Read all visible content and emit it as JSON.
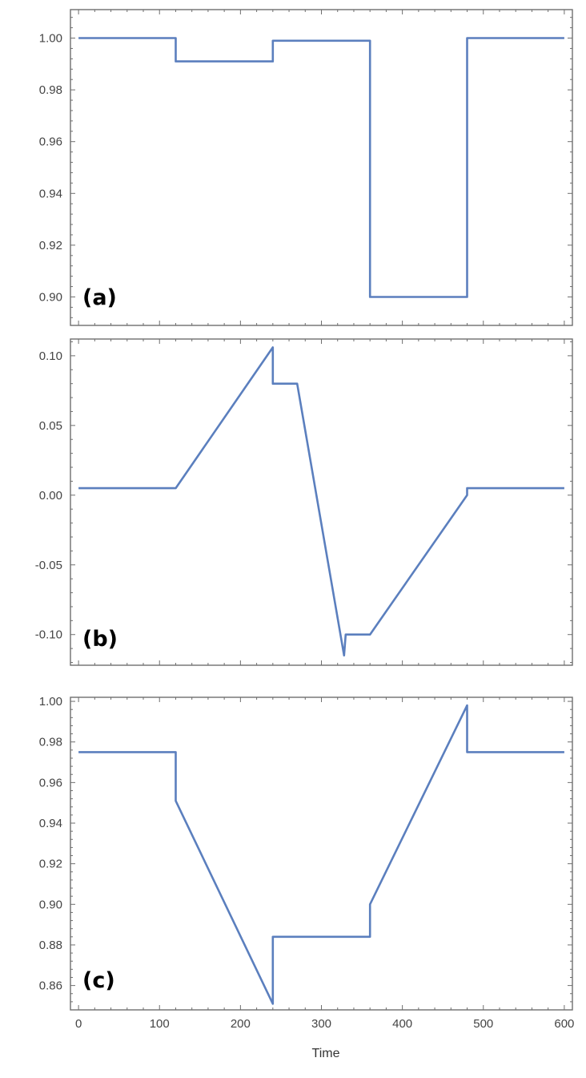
{
  "figure": {
    "xlabel": "Time",
    "line_color": "#5b7fbe"
  },
  "chart_data": [
    {
      "type": "line",
      "panel_label": "(a)",
      "xlim": [
        -10,
        610
      ],
      "ylim": [
        0.889,
        1.011
      ],
      "x_ticks": [
        0,
        100,
        200,
        300,
        400,
        500,
        600
      ],
      "x_tick_labels_visible": false,
      "y_ticks": [
        0.9,
        0.92,
        0.94,
        0.96,
        0.98,
        1.0
      ],
      "y_tick_labels": [
        "0.90",
        "0.92",
        "0.94",
        "0.96",
        "0.98",
        "1.00"
      ],
      "grid": false,
      "series": [
        {
          "x": [
            0,
            120,
            120,
            240,
            240,
            360,
            360,
            480,
            480,
            600
          ],
          "y": [
            1.0,
            1.0,
            0.991,
            0.991,
            0.999,
            0.999,
            0.9,
            0.9,
            1.0,
            1.0
          ]
        }
      ]
    },
    {
      "type": "line",
      "panel_label": "(b)",
      "xlim": [
        -10,
        610
      ],
      "ylim": [
        -0.122,
        0.112
      ],
      "x_ticks": [
        0,
        100,
        200,
        300,
        400,
        500,
        600
      ],
      "x_tick_labels_visible": false,
      "y_ticks": [
        -0.1,
        -0.05,
        0.0,
        0.05,
        0.1
      ],
      "y_tick_labels": [
        "-0.10",
        "-0.05",
        "0.00",
        "0.05",
        "0.10"
      ],
      "grid": false,
      "series": [
        {
          "x": [
            0,
            120,
            240,
            240,
            270,
            328,
            330,
            330,
            360,
            480,
            480,
            600
          ],
          "y": [
            0.005,
            0.005,
            0.106,
            0.08,
            0.08,
            -0.115,
            -0.1,
            -0.1,
            -0.1,
            0.0,
            0.005,
            0.005
          ]
        }
      ]
    },
    {
      "type": "line",
      "panel_label": "(c)",
      "xlim": [
        -10,
        610
      ],
      "ylim": [
        0.848,
        1.002
      ],
      "x_ticks": [
        0,
        100,
        200,
        300,
        400,
        500,
        600
      ],
      "x_tick_labels_visible": true,
      "x_tick_labels": [
        "0",
        "100",
        "200",
        "300",
        "400",
        "500",
        "600"
      ],
      "y_ticks": [
        0.86,
        0.88,
        0.9,
        0.92,
        0.94,
        0.96,
        0.98,
        1.0
      ],
      "y_tick_labels": [
        "0.86",
        "0.88",
        "0.90",
        "0.92",
        "0.94",
        "0.96",
        "0.98",
        "1.00"
      ],
      "grid": false,
      "series": [
        {
          "x": [
            0,
            120,
            120,
            240,
            240,
            360,
            360,
            480,
            480,
            600
          ],
          "y": [
            0.975,
            0.975,
            0.951,
            0.851,
            0.884,
            0.884,
            0.9,
            0.998,
            0.975,
            0.975
          ]
        }
      ]
    }
  ]
}
